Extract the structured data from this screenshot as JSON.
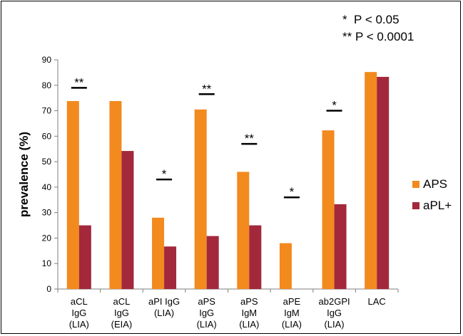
{
  "notes": {
    "line1": "*  P < 0.05",
    "line2": "** P < 0.0001"
  },
  "chart_data": {
    "type": "bar",
    "ylabel": "prevalence (%)",
    "xlabel": "",
    "ylim": [
      0,
      90
    ],
    "ytick_step": 10,
    "grid": false,
    "legend_position": "right",
    "categories": [
      [
        "aCL",
        "IgG",
        "(LIA)"
      ],
      [
        "aCL",
        "IgG",
        "(EIA)"
      ],
      [
        "aPI IgG",
        "(LIA)"
      ],
      [
        "aPS",
        "IgG",
        "(LIA)"
      ],
      [
        "aPS",
        "IgM",
        "(LIA)"
      ],
      [
        "aPE",
        "IgM",
        "(LIA)"
      ],
      [
        "ab2GPI",
        "IgG",
        "(LIA)"
      ],
      [
        "LAC"
      ]
    ],
    "series": [
      {
        "name": "APS",
        "color": "#F28A1E",
        "values": [
          73.8,
          73.8,
          28,
          70.5,
          46,
          18,
          62.3,
          85.2
        ]
      },
      {
        "name": "aPL+",
        "color": "#A3283C",
        "values": [
          25,
          54.2,
          16.7,
          20.8,
          25,
          0,
          33.3,
          83.3
        ]
      }
    ],
    "annotations": [
      {
        "category": 0,
        "label": "**",
        "y": 79
      },
      {
        "category": 2,
        "label": "*",
        "y": 43
      },
      {
        "category": 3,
        "label": "**",
        "y": 76.5
      },
      {
        "category": 4,
        "label": "**",
        "y": 57
      },
      {
        "category": 5,
        "label": "*",
        "y": 36
      },
      {
        "category": 6,
        "label": "*",
        "y": 70
      }
    ]
  }
}
